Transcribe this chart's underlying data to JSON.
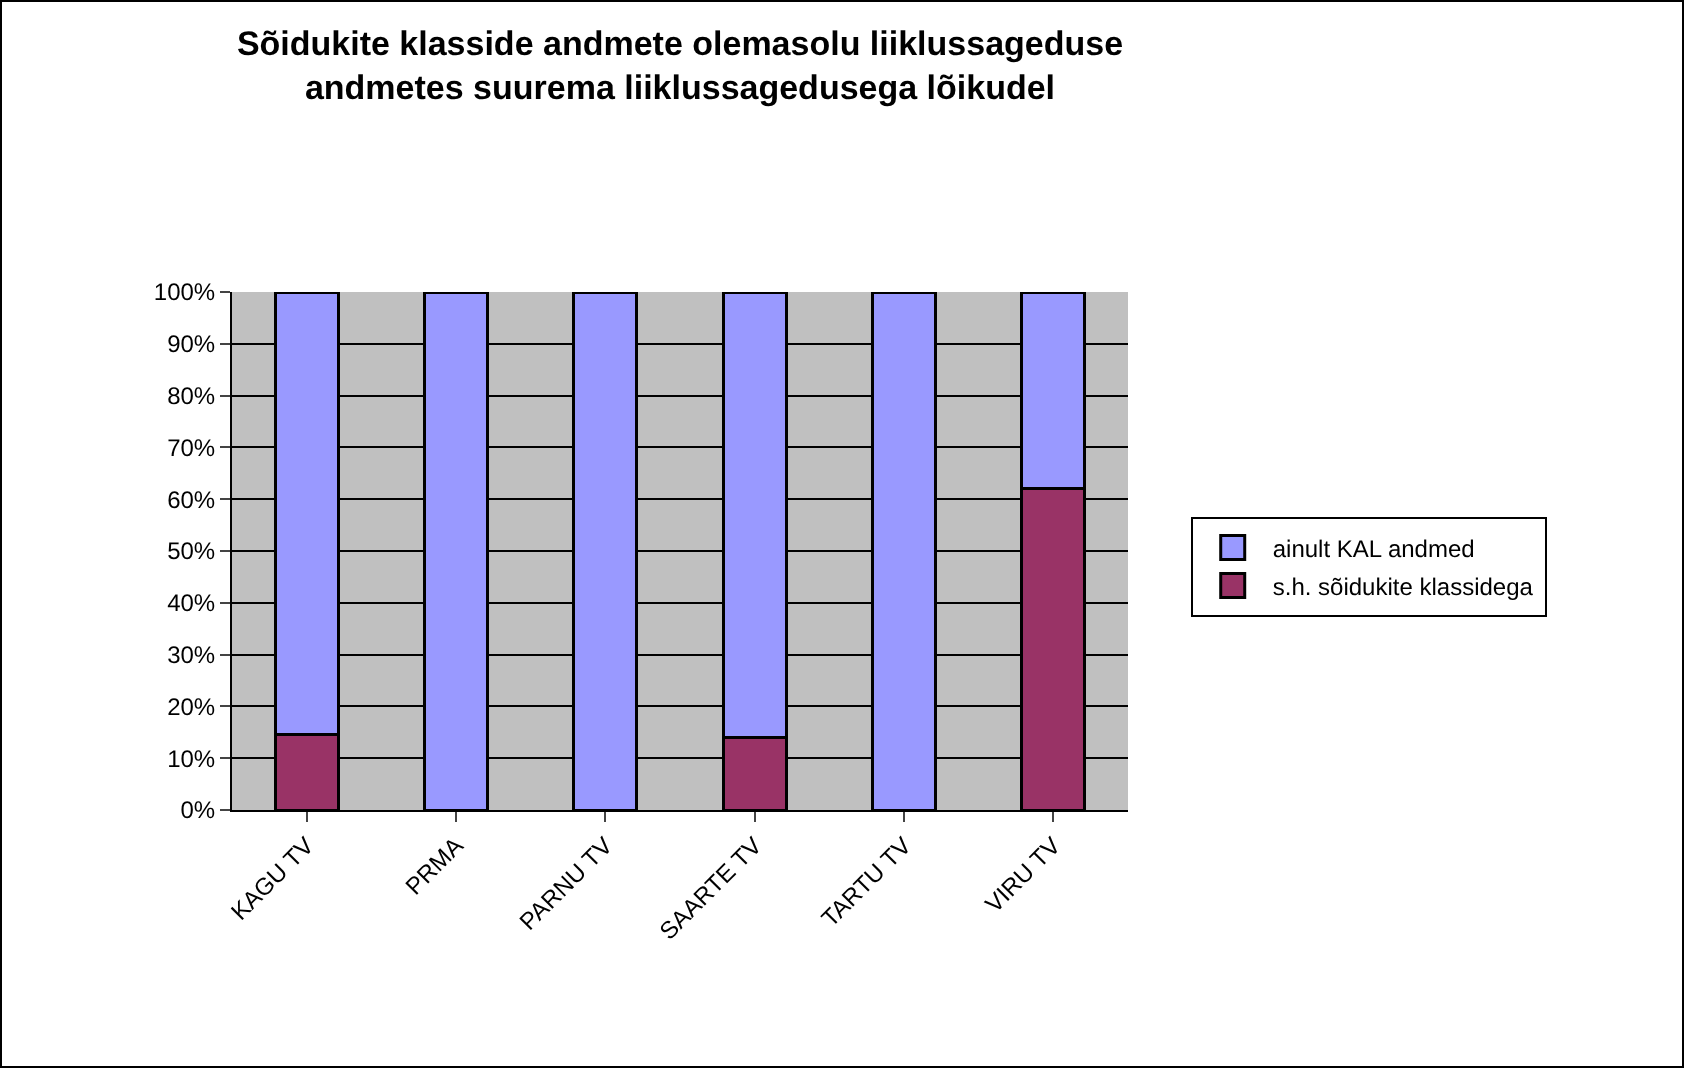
{
  "chart_data": {
    "type": "bar",
    "title": "Sõidukite klasside andmete olemasolu liiklussageduse andmetes suurema liiklussagedusega lõikudel",
    "categories": [
      "KAGU TV",
      "PRMA",
      "PARNU TV",
      "SAARTE TV",
      "TARTU TV",
      "VIRU TV"
    ],
    "series": [
      {
        "name": "s.h. sõidukite klassidega",
        "color": "#993366",
        "values": [
          14.5,
          0,
          0,
          14,
          0,
          62
        ]
      },
      {
        "name": "ainult KAL andmed",
        "color": "#9999ff",
        "values": [
          85.5,
          100,
          100,
          86,
          100,
          38
        ]
      }
    ],
    "stacked": true,
    "ylim": [
      0,
      100
    ],
    "yticks": [
      {
        "value": 0,
        "label": "0%"
      },
      {
        "value": 10,
        "label": "10%"
      },
      {
        "value": 20,
        "label": "20%"
      },
      {
        "value": 30,
        "label": "30%"
      },
      {
        "value": 40,
        "label": "40%"
      },
      {
        "value": 50,
        "label": "50%"
      },
      {
        "value": 60,
        "label": "60%"
      },
      {
        "value": 70,
        "label": "70%"
      },
      {
        "value": 80,
        "label": "80%"
      },
      {
        "value": 90,
        "label": "90%"
      },
      {
        "value": 100,
        "label": "100%"
      }
    ],
    "grid": "y",
    "legend": "right"
  }
}
